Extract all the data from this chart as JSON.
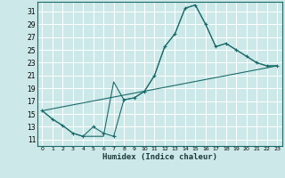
{
  "background_color": "#cde8e8",
  "grid_color": "#b0d0d0",
  "line_color": "#1a6b6b",
  "xlabel": "Humidex (Indice chaleur)",
  "xlim": [
    -0.5,
    23.5
  ],
  "ylim": [
    10.0,
    32.5
  ],
  "xticks": [
    0,
    1,
    2,
    3,
    4,
    5,
    6,
    7,
    8,
    9,
    10,
    11,
    12,
    13,
    14,
    15,
    16,
    17,
    18,
    19,
    20,
    21,
    22,
    23
  ],
  "yticks": [
    11,
    13,
    15,
    17,
    19,
    21,
    23,
    25,
    27,
    29,
    31
  ],
  "line1_x": [
    0,
    1,
    2,
    3,
    4,
    5,
    6,
    7,
    8,
    9,
    10,
    11,
    12,
    13,
    14,
    15,
    16,
    17,
    18,
    19,
    20,
    21,
    22,
    23
  ],
  "line1_y": [
    15.5,
    14.2,
    13.2,
    12.0,
    11.5,
    13.0,
    12.0,
    11.5,
    17.2,
    17.5,
    18.5,
    21.0,
    25.5,
    27.5,
    31.5,
    32.0,
    29.0,
    25.5,
    26.0,
    25.0,
    24.0,
    23.0,
    22.5,
    22.5
  ],
  "line2_x": [
    0,
    1,
    2,
    3,
    4,
    5,
    6,
    7,
    8,
    9,
    10,
    11,
    12,
    13,
    14,
    15,
    16,
    17,
    18,
    19,
    20,
    21,
    22,
    23
  ],
  "line2_y": [
    15.5,
    14.2,
    13.2,
    12.0,
    11.5,
    11.5,
    11.5,
    20.0,
    17.2,
    17.5,
    18.5,
    21.0,
    25.5,
    27.5,
    31.5,
    32.0,
    29.0,
    25.5,
    26.0,
    25.0,
    24.0,
    23.0,
    22.5,
    22.5
  ],
  "line3_x": [
    0,
    23
  ],
  "line3_y": [
    15.5,
    22.5
  ]
}
